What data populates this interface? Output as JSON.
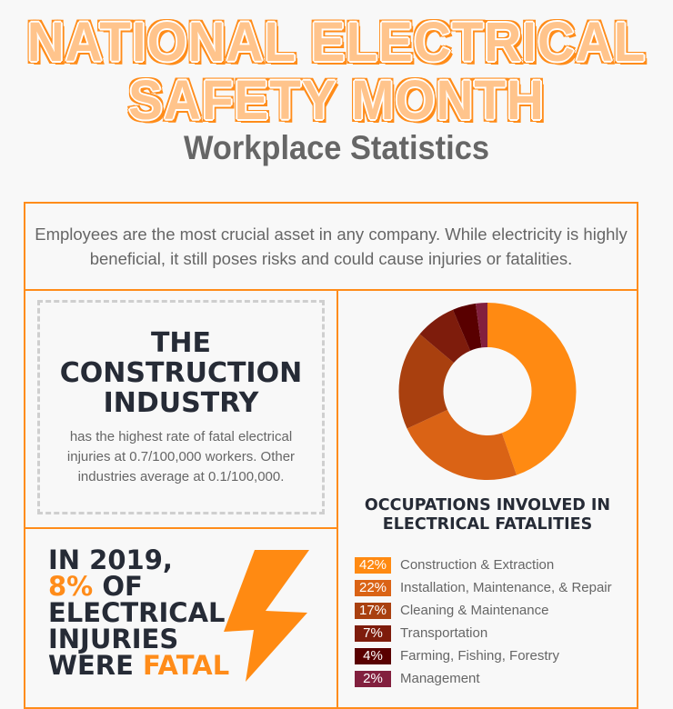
{
  "header": {
    "title_line1": "NATIONAL ELECTRICAL",
    "title_line2": "SAFETY MONTH",
    "subtitle": "Workplace Statistics"
  },
  "intro": {
    "text": "Employees are the most crucial asset in any company. While electricity is highly beneficial, it still poses risks and could cause injuries or fatalities."
  },
  "construction": {
    "heading_lines": [
      "THE",
      "CONSTRUCTION",
      "INDUSTRY"
    ],
    "text": "has the highest rate of fatal electrical injuries at 0.7/100,000 workers. Other industries average at 0.1/100,000."
  },
  "fatal_stat": {
    "line1": "IN 2019,",
    "highlight_pct": "8%",
    "line2_rest": " OF",
    "line3": "ELECTRICAL",
    "line4": "INJURIES",
    "line5_prefix": "WERE ",
    "line5_highlight": "FATAL",
    "icon": "lightning-bolt-icon"
  },
  "colors": {
    "accent": "#ff8c1a",
    "title_fill": "#ffc48c",
    "dark_text": "#262b36",
    "body_text": "#666666",
    "background": "#f8f8f8"
  },
  "chart_data": {
    "type": "pie",
    "subtype": "donut",
    "title": "OCCUPATIONS INVOLVED IN ELECTRICAL FATALITIES",
    "categories": [
      "Construction & Extraction",
      "Installation, Maintenance, & Repair",
      "Cleaning & Maintenance",
      "Transportation",
      "Farming, Fishing, Forestry",
      "Management"
    ],
    "values": [
      42,
      22,
      17,
      7,
      4,
      2
    ],
    "labels": [
      "42%",
      "22%",
      "17%",
      "7%",
      "4%",
      "2%"
    ],
    "colors": [
      "#ff8a12",
      "#da6315",
      "#a9400f",
      "#7e1c0c",
      "#590000",
      "#82203e"
    ],
    "legend_position": "bottom"
  }
}
